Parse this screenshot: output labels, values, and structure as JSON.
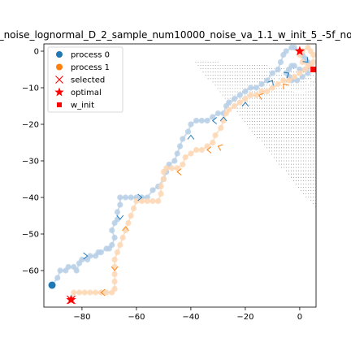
{
  "chart_data": {
    "type": "scatter",
    "title": "_noise_lognormal_D_2_sample_num10000_noise_va_1.1_w_init_5_-5f_no",
    "xlabel": "",
    "ylabel": "",
    "xlim": [
      -94,
      6
    ],
    "ylim": [
      -70,
      2
    ],
    "x_ticks": [
      -80,
      -60,
      -40,
      -20,
      0
    ],
    "x_tick_labels": [
      "−80",
      "−60",
      "−40",
      "−20",
      "0"
    ],
    "y_ticks": [
      0,
      -10,
      -20,
      -30,
      -40,
      -50,
      -60
    ],
    "y_tick_labels": [
      "0",
      "−10",
      "−20",
      "−30",
      "−40",
      "−50",
      "−60"
    ],
    "legend_position": "top-left",
    "legend": [
      {
        "label": "process 0",
        "marker": "circle",
        "color": "#1f77b4"
      },
      {
        "label": "process 1",
        "marker": "circle",
        "color": "#ff7f0e"
      },
      {
        "label": "selected",
        "marker": "x",
        "color": "#ff0000"
      },
      {
        "label": "optimal",
        "marker": "star",
        "color": "#ff0000"
      },
      {
        "label": "w_init",
        "marker": "square",
        "color": "#ff0000"
      }
    ],
    "colors": {
      "process_0": "#1f77b4",
      "process_0_light": "#b7cfe6",
      "process_1": "#ff7f0e",
      "process_1_light": "#fdd7b5",
      "marker_red": "#ff0000",
      "grid_dots": "#000000"
    },
    "series": [
      {
        "name": "process 0",
        "points": [
          [
            -91,
            -64
          ],
          [
            -89,
            -62
          ],
          [
            -88,
            -60
          ],
          [
            -86,
            -60
          ],
          [
            -85,
            -59
          ],
          [
            -83,
            -59
          ],
          [
            -82,
            -60
          ],
          [
            -81,
            -58
          ],
          [
            -80,
            -57
          ],
          [
            -78,
            -57
          ],
          [
            -77,
            -56
          ],
          [
            -75,
            -56
          ],
          [
            -74,
            -55
          ],
          [
            -73,
            -55
          ],
          [
            -71,
            -54
          ],
          [
            -70,
            -54
          ],
          [
            -69,
            -53
          ],
          [
            -68,
            -51
          ],
          [
            -69,
            -49
          ],
          [
            -68,
            -47
          ],
          [
            -67,
            -46
          ],
          [
            -67,
            -44
          ],
          [
            -66,
            -42
          ],
          [
            -66,
            -40
          ],
          [
            -64,
            -40
          ],
          [
            -62,
            -40
          ],
          [
            -60,
            -40
          ],
          [
            -58,
            -40
          ],
          [
            -56,
            -40
          ],
          [
            -54,
            -38
          ],
          [
            -52,
            -37
          ],
          [
            -50,
            -35
          ],
          [
            -49,
            -33
          ],
          [
            -48,
            -31
          ],
          [
            -46,
            -30
          ],
          [
            -45,
            -28
          ],
          [
            -44,
            -26
          ],
          [
            -43,
            -24
          ],
          [
            -41,
            -22
          ],
          [
            -40,
            -20
          ],
          [
            -38,
            -19
          ],
          [
            -36,
            -19
          ],
          [
            -34,
            -19
          ],
          [
            -32,
            -18
          ],
          [
            -30,
            -17
          ],
          [
            -28,
            -17
          ],
          [
            -27,
            -15
          ],
          [
            -26,
            -14
          ],
          [
            -24,
            -13
          ],
          [
            -22,
            -12
          ],
          [
            -20,
            -11
          ],
          [
            -18,
            -10
          ],
          [
            -16,
            -10
          ],
          [
            -14,
            -9
          ],
          [
            -12,
            -8
          ],
          [
            -10,
            -6
          ],
          [
            -8,
            -5
          ],
          [
            -7,
            -3
          ],
          [
            -6,
            -1
          ],
          [
            -5,
            0
          ],
          [
            -3,
            1
          ],
          [
            -2,
            1
          ],
          [
            0,
            0
          ],
          [
            1,
            -1
          ],
          [
            2,
            -2
          ],
          [
            3,
            -3
          ],
          [
            4,
            -4
          ],
          [
            3,
            -6
          ],
          [
            1,
            -7
          ],
          [
            -1,
            -8
          ],
          [
            -3,
            -8
          ],
          [
            -4,
            -7
          ],
          [
            -5,
            -6
          ],
          [
            -4,
            -5
          ],
          [
            -3,
            -4
          ],
          [
            -2,
            -4
          ],
          [
            0,
            -5
          ],
          [
            2,
            -5
          ]
        ]
      },
      {
        "name": "process 1",
        "points": [
          [
            -84,
            -68
          ],
          [
            -83,
            -66
          ],
          [
            -81,
            -66
          ],
          [
            -79,
            -66
          ],
          [
            -77,
            -66
          ],
          [
            -75,
            -66
          ],
          [
            -73,
            -66
          ],
          [
            -71,
            -66
          ],
          [
            -69,
            -66
          ],
          [
            -68,
            -65
          ],
          [
            -68,
            -63
          ],
          [
            -68,
            -61
          ],
          [
            -68,
            -59
          ],
          [
            -68,
            -57
          ],
          [
            -67,
            -55
          ],
          [
            -66,
            -53
          ],
          [
            -65,
            -51
          ],
          [
            -64,
            -49
          ],
          [
            -63,
            -47
          ],
          [
            -62,
            -45
          ],
          [
            -61,
            -43
          ],
          [
            -60,
            -41
          ],
          [
            -58,
            -41
          ],
          [
            -56,
            -41
          ],
          [
            -54,
            -41
          ],
          [
            -52,
            -41
          ],
          [
            -51,
            -39
          ],
          [
            -51,
            -37
          ],
          [
            -50,
            -35
          ],
          [
            -50,
            -33
          ],
          [
            -49,
            -32
          ],
          [
            -47,
            -32
          ],
          [
            -45,
            -32
          ],
          [
            -43,
            -31
          ],
          [
            -42,
            -29
          ],
          [
            -40,
            -28
          ],
          [
            -38,
            -27
          ],
          [
            -36,
            -27
          ],
          [
            -34,
            -26
          ],
          [
            -32,
            -25
          ],
          [
            -31,
            -23
          ],
          [
            -29,
            -21
          ],
          [
            -28,
            -19
          ],
          [
            -27,
            -17
          ],
          [
            -26,
            -16
          ],
          [
            -24,
            -15
          ],
          [
            -22,
            -14
          ],
          [
            -20,
            -13
          ],
          [
            -18,
            -12
          ],
          [
            -16,
            -12
          ],
          [
            -14,
            -11
          ],
          [
            -12,
            -11
          ],
          [
            -10,
            -10
          ],
          [
            -8,
            -9
          ],
          [
            -6,
            -8
          ],
          [
            -4,
            -8
          ],
          [
            -2,
            -7
          ],
          [
            0,
            -6
          ],
          [
            2,
            -5
          ],
          [
            4,
            -4
          ],
          [
            5,
            -3
          ],
          [
            5,
            -1
          ],
          [
            4,
            0
          ],
          [
            3,
            1
          ],
          [
            1,
            0
          ],
          [
            0,
            -1
          ],
          [
            1,
            -3
          ],
          [
            3,
            -4
          ]
        ]
      }
    ],
    "arrows_process_0": [
      [
        -78,
        -56,
        0
      ],
      [
        -66,
        -46,
        90
      ],
      [
        -58,
        -40,
        0
      ],
      [
        -40,
        -23,
        270
      ],
      [
        -32,
        -19,
        180
      ],
      [
        -28,
        -18,
        270
      ],
      [
        -20,
        -14,
        270
      ],
      [
        -10,
        -8,
        300
      ],
      [
        -4,
        -6,
        330
      ],
      [
        3,
        -3,
        45
      ]
    ],
    "arrows_process_1": [
      [
        -73,
        -66,
        180
      ],
      [
        -68,
        -60,
        90
      ],
      [
        -64,
        -48,
        270
      ],
      [
        -45,
        -33,
        180
      ],
      [
        -34,
        -27,
        180
      ],
      [
        -30,
        -26,
        200
      ],
      [
        -15,
        -12,
        200
      ],
      [
        -6,
        -9,
        230
      ]
    ],
    "selected": [
      [
        -84,
        -68
      ]
    ],
    "optimal": [
      [
        -84,
        -68
      ],
      [
        0,
        0
      ]
    ],
    "w_init": [
      [
        5,
        -5
      ]
    ]
  }
}
